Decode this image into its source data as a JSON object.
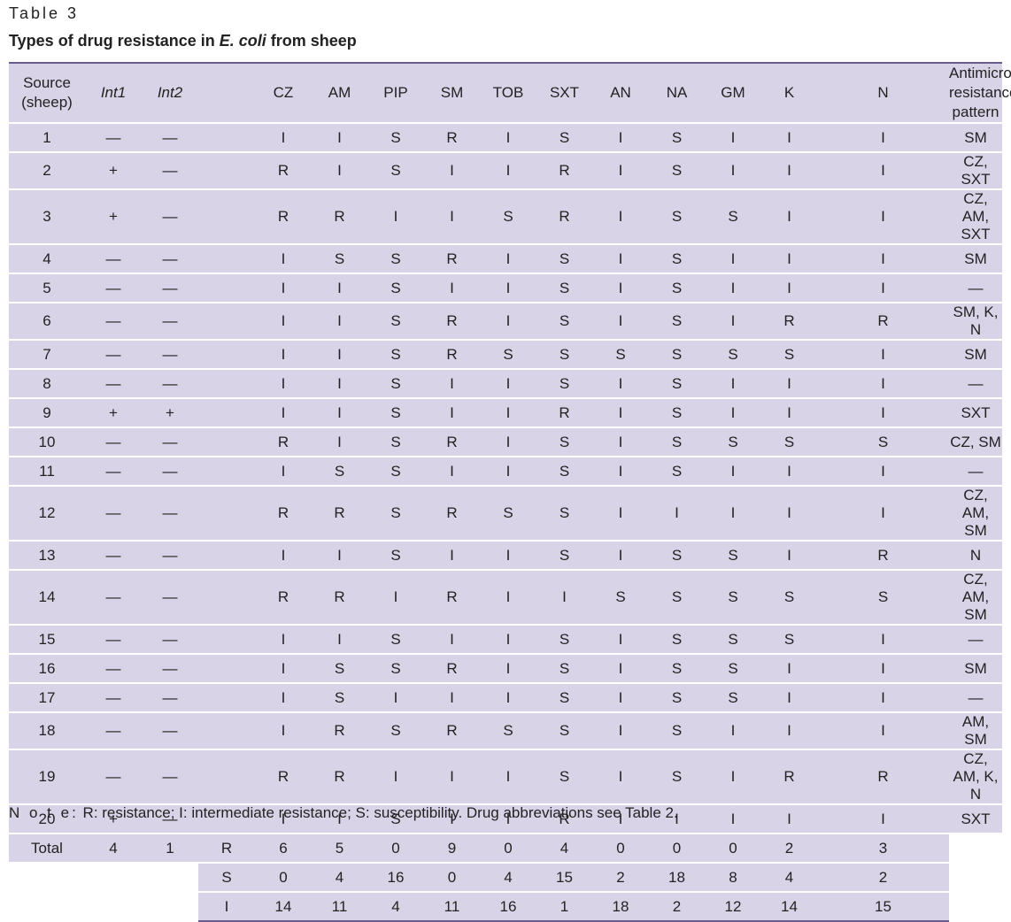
{
  "table_number": "Table 3",
  "caption": {
    "pre": "Types of drug resistance in ",
    "em": "E. coli",
    "post": " from sheep"
  },
  "headers": {
    "source_line1": "Source",
    "source_line2": "(sheep)",
    "int1": "Int1",
    "int2": "Int2",
    "drugs": [
      "CZ",
      "AM",
      "PIP",
      "SM",
      "TOB",
      "SXT",
      "AN",
      "NA",
      "GM",
      "K",
      "N"
    ],
    "pattern_line1": "Antimicrobial",
    "pattern_line2": "resistance pattern"
  },
  "rows": [
    {
      "src": "1",
      "int1": "—",
      "int2": "—",
      "vals": [
        "I",
        "I",
        "S",
        "R",
        "I",
        "S",
        "I",
        "S",
        "I",
        "I",
        "I"
      ],
      "pattern": "SM"
    },
    {
      "src": "2",
      "int1": "+",
      "int2": "—",
      "vals": [
        "R",
        "I",
        "S",
        "I",
        "I",
        "R",
        "I",
        "S",
        "I",
        "I",
        "I"
      ],
      "pattern": "CZ, SXT"
    },
    {
      "src": "3",
      "int1": "+",
      "int2": "—",
      "vals": [
        "R",
        "R",
        "I",
        "I",
        "S",
        "R",
        "I",
        "S",
        "S",
        "I",
        "I"
      ],
      "pattern": "CZ, AM, SXT"
    },
    {
      "src": "4",
      "int1": "—",
      "int2": "—",
      "vals": [
        "I",
        "S",
        "S",
        "R",
        "I",
        "S",
        "I",
        "S",
        "I",
        "I",
        "I"
      ],
      "pattern": "SM"
    },
    {
      "src": "5",
      "int1": "—",
      "int2": "—",
      "vals": [
        "I",
        "I",
        "S",
        "I",
        "I",
        "S",
        "I",
        "S",
        "I",
        "I",
        "I"
      ],
      "pattern": "—"
    },
    {
      "src": "6",
      "int1": "—",
      "int2": "—",
      "vals": [
        "I",
        "I",
        "S",
        "R",
        "I",
        "S",
        "I",
        "S",
        "I",
        "R",
        "R"
      ],
      "pattern": "SM, K, N"
    },
    {
      "src": "7",
      "int1": "—",
      "int2": "—",
      "vals": [
        "I",
        "I",
        "S",
        "R",
        "S",
        "S",
        "S",
        "S",
        "S",
        "S",
        "I"
      ],
      "pattern": "SM"
    },
    {
      "src": "8",
      "int1": "—",
      "int2": "—",
      "vals": [
        "I",
        "I",
        "S",
        "I",
        "I",
        "S",
        "I",
        "S",
        "I",
        "I",
        "I"
      ],
      "pattern": "—"
    },
    {
      "src": "9",
      "int1": "+",
      "int2": "+",
      "vals": [
        "I",
        "I",
        "S",
        "I",
        "I",
        "R",
        "I",
        "S",
        "I",
        "I",
        "I"
      ],
      "pattern": "SXT"
    },
    {
      "src": "10",
      "int1": "—",
      "int2": "—",
      "vals": [
        "R",
        "I",
        "S",
        "R",
        "I",
        "S",
        "I",
        "S",
        "S",
        "S",
        "S"
      ],
      "pattern": "CZ, SM"
    },
    {
      "src": "11",
      "int1": "—",
      "int2": "—",
      "vals": [
        "I",
        "S",
        "S",
        "I",
        "I",
        "S",
        "I",
        "S",
        "I",
        "I",
        "I"
      ],
      "pattern": "—"
    },
    {
      "src": "12",
      "int1": "—",
      "int2": "—",
      "vals": [
        "R",
        "R",
        "S",
        "R",
        "S",
        "S",
        "I",
        "I",
        "I",
        "I",
        "I"
      ],
      "pattern": "CZ, AM, SM"
    },
    {
      "src": "13",
      "int1": "—",
      "int2": "—",
      "vals": [
        "I",
        "I",
        "S",
        "I",
        "I",
        "S",
        "I",
        "S",
        "S",
        "I",
        "R"
      ],
      "pattern": "N"
    },
    {
      "src": "14",
      "int1": "—",
      "int2": "—",
      "vals": [
        "R",
        "R",
        "I",
        "R",
        "I",
        "I",
        "S",
        "S",
        "S",
        "S",
        "S"
      ],
      "pattern": "CZ, AM, SM"
    },
    {
      "src": "15",
      "int1": "—",
      "int2": "—",
      "vals": [
        "I",
        "I",
        "S",
        "I",
        "I",
        "S",
        "I",
        "S",
        "S",
        "S",
        "I"
      ],
      "pattern": "—"
    },
    {
      "src": "16",
      "int1": "—",
      "int2": "—",
      "vals": [
        "I",
        "S",
        "S",
        "R",
        "I",
        "S",
        "I",
        "S",
        "S",
        "I",
        "I"
      ],
      "pattern": "SM"
    },
    {
      "src": "17",
      "int1": "—",
      "int2": "—",
      "vals": [
        "I",
        "S",
        "I",
        "I",
        "I",
        "S",
        "I",
        "S",
        "S",
        "I",
        "I"
      ],
      "pattern": "—"
    },
    {
      "src": "18",
      "int1": "—",
      "int2": "—",
      "vals": [
        "I",
        "R",
        "S",
        "R",
        "S",
        "S",
        "I",
        "S",
        "I",
        "I",
        "I"
      ],
      "pattern": "AM, SM"
    },
    {
      "src": "19",
      "int1": "—",
      "int2": "—",
      "vals": [
        "R",
        "R",
        "I",
        "I",
        "I",
        "S",
        "I",
        "S",
        "I",
        "R",
        "R"
      ],
      "pattern": "CZ, AM, K, N"
    },
    {
      "src": "20",
      "int1": "+",
      "int2": "—",
      "vals": [
        "I",
        "I",
        "S",
        "I",
        "I",
        "R",
        "I",
        "I",
        "I",
        "I",
        "I"
      ],
      "pattern": "SXT"
    }
  ],
  "totals": {
    "label": "Total",
    "int1": "4",
    "int2": "1",
    "lines": [
      {
        "key": "R",
        "vals": [
          "6",
          "5",
          "0",
          "9",
          "0",
          "4",
          "0",
          "0",
          "0",
          "2",
          "3"
        ]
      },
      {
        "key": "S",
        "vals": [
          "0",
          "4",
          "16",
          "0",
          "4",
          "15",
          "2",
          "18",
          "8",
          "4",
          "2"
        ]
      },
      {
        "key": "I",
        "vals": [
          "14",
          "11",
          "4",
          "11",
          "16",
          "1",
          "18",
          "2",
          "12",
          "14",
          "15"
        ]
      }
    ]
  },
  "note": {
    "label": "N o t e:",
    "text": " R: resistance; I: intermediate resistance; S: susceptibility. Drug abbreviations see Table 2."
  }
}
